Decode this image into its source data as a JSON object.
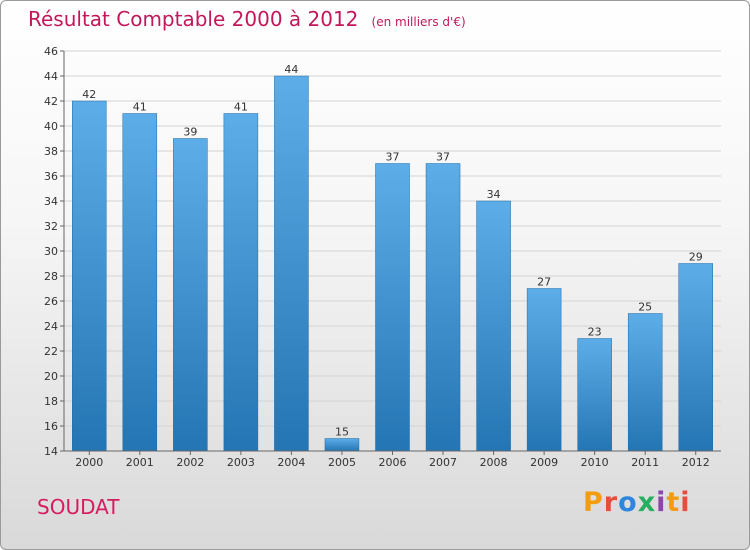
{
  "header": {
    "title": "Résultat Comptable 2000 à 2012",
    "subtitle": "(en milliers d'€)"
  },
  "footer": {
    "commune": "SOUDAT",
    "brand": "Proxiti",
    "brand_colors": [
      "#f39c12",
      "#e74c3c",
      "#2e86de",
      "#27ae60",
      "#8e44ad",
      "#f39c12",
      "#e74c3c"
    ]
  },
  "colors": {
    "bar_top": "#5dade8",
    "bar_bottom": "#2475b3",
    "title": "#c2185b"
  },
  "chart_data": {
    "type": "bar",
    "categories": [
      "2000",
      "2001",
      "2002",
      "2003",
      "2004",
      "2005",
      "2006",
      "2007",
      "2008",
      "2009",
      "2010",
      "2011",
      "2012"
    ],
    "values": [
      42,
      41,
      39,
      41,
      44,
      15,
      37,
      37,
      34,
      27,
      23,
      25,
      29
    ],
    "title": "Résultat Comptable 2000 à 2012",
    "subtitle": "(en milliers d'€)",
    "xlabel": "",
    "ylabel": "",
    "ylim": [
      14,
      46
    ],
    "yticks": [
      14,
      16,
      18,
      20,
      22,
      24,
      26,
      28,
      30,
      32,
      34,
      36,
      38,
      40,
      42,
      44,
      46
    ],
    "grid": true
  }
}
